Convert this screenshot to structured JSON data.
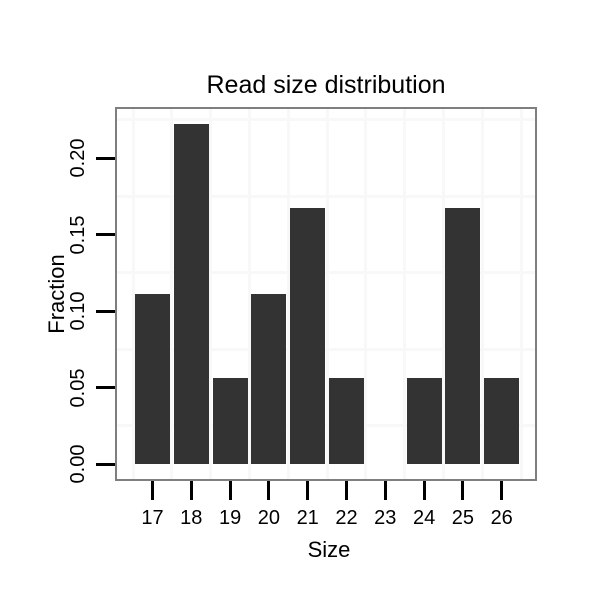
{
  "title": "Read size distribution",
  "chart_data": {
    "type": "bar",
    "title": "Read size distribution",
    "xlabel": "Size",
    "ylabel": "Fraction",
    "categories": [
      "17",
      "18",
      "19",
      "20",
      "21",
      "22",
      "23",
      "24",
      "25",
      "26"
    ],
    "values": [
      0.111,
      0.222,
      0.056,
      0.111,
      0.167,
      0.056,
      0,
      0.056,
      0.167,
      0.056
    ],
    "ytick_labels": [
      "0.00",
      "0.05",
      "0.10",
      "0.15",
      "0.20"
    ],
    "ytick_values": [
      0,
      0.05,
      0.1,
      0.15,
      0.2
    ],
    "ylim": [
      -0.0098,
      0.232
    ],
    "grid": "minor-only",
    "minor_grid_x_positions": [
      16.5,
      17.5,
      18.5,
      19.5,
      20.5,
      21.5,
      22.5,
      23.5,
      24.5,
      25.5,
      26.5
    ],
    "minor_grid_y_positions": [
      0.025,
      0.075,
      0.125,
      0.175,
      0.225
    ],
    "bar_color": "#333333",
    "grid_color": "#f8f8f8",
    "panel_border_color": "#7f7f7f",
    "tick_color": "#000000",
    "text_color": "#000000",
    "legend": "none"
  }
}
